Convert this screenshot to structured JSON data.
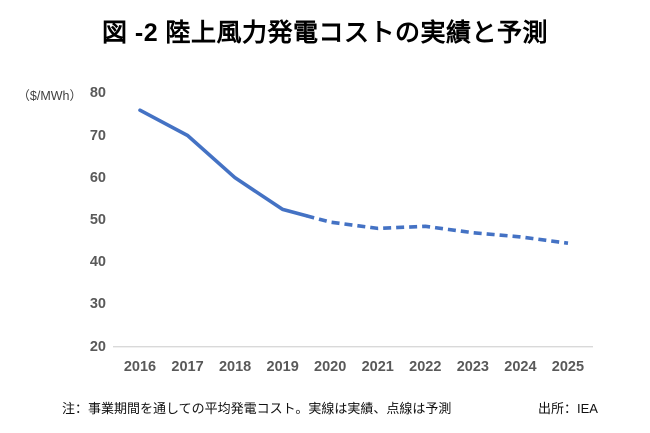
{
  "title": "図 -2 陸上風力発電コストの実績と予測",
  "y_axis_unit": "（$/MWh）",
  "footnote": "注：事業期間を通しての平均発電コスト。実線は実績、点線は予測",
  "source": "出所：IEA",
  "colors": {
    "line": "#4472C4",
    "axis_text": "#595959",
    "axis_line": "#D9D9D9",
    "title_text": "#000000"
  },
  "chart_data": {
    "type": "line",
    "title": "図 -2 陸上風力発電コストの実績と予測",
    "xlabel": "",
    "ylabel": "（$/MWh）",
    "categories": [
      "2016",
      "2017",
      "2018",
      "2019",
      "2020",
      "2021",
      "2022",
      "2023",
      "2024",
      "2025"
    ],
    "series": [
      {
        "name": "陸上風力発電コスト",
        "values": [
          76,
          70,
          60,
          52.5,
          49.5,
          48,
          48.5,
          47,
          46,
          44.5
        ],
        "actual_count": 4,
        "actual_style": "solid",
        "forecast_style": "dashed"
      }
    ],
    "ylim": [
      20,
      80
    ],
    "y_ticks": [
      80,
      70,
      60,
      50,
      40,
      30,
      20
    ],
    "grid": false,
    "legend": false,
    "annotation": "実線は実績（2016-2019）、点線は予測（2020-2025）"
  }
}
